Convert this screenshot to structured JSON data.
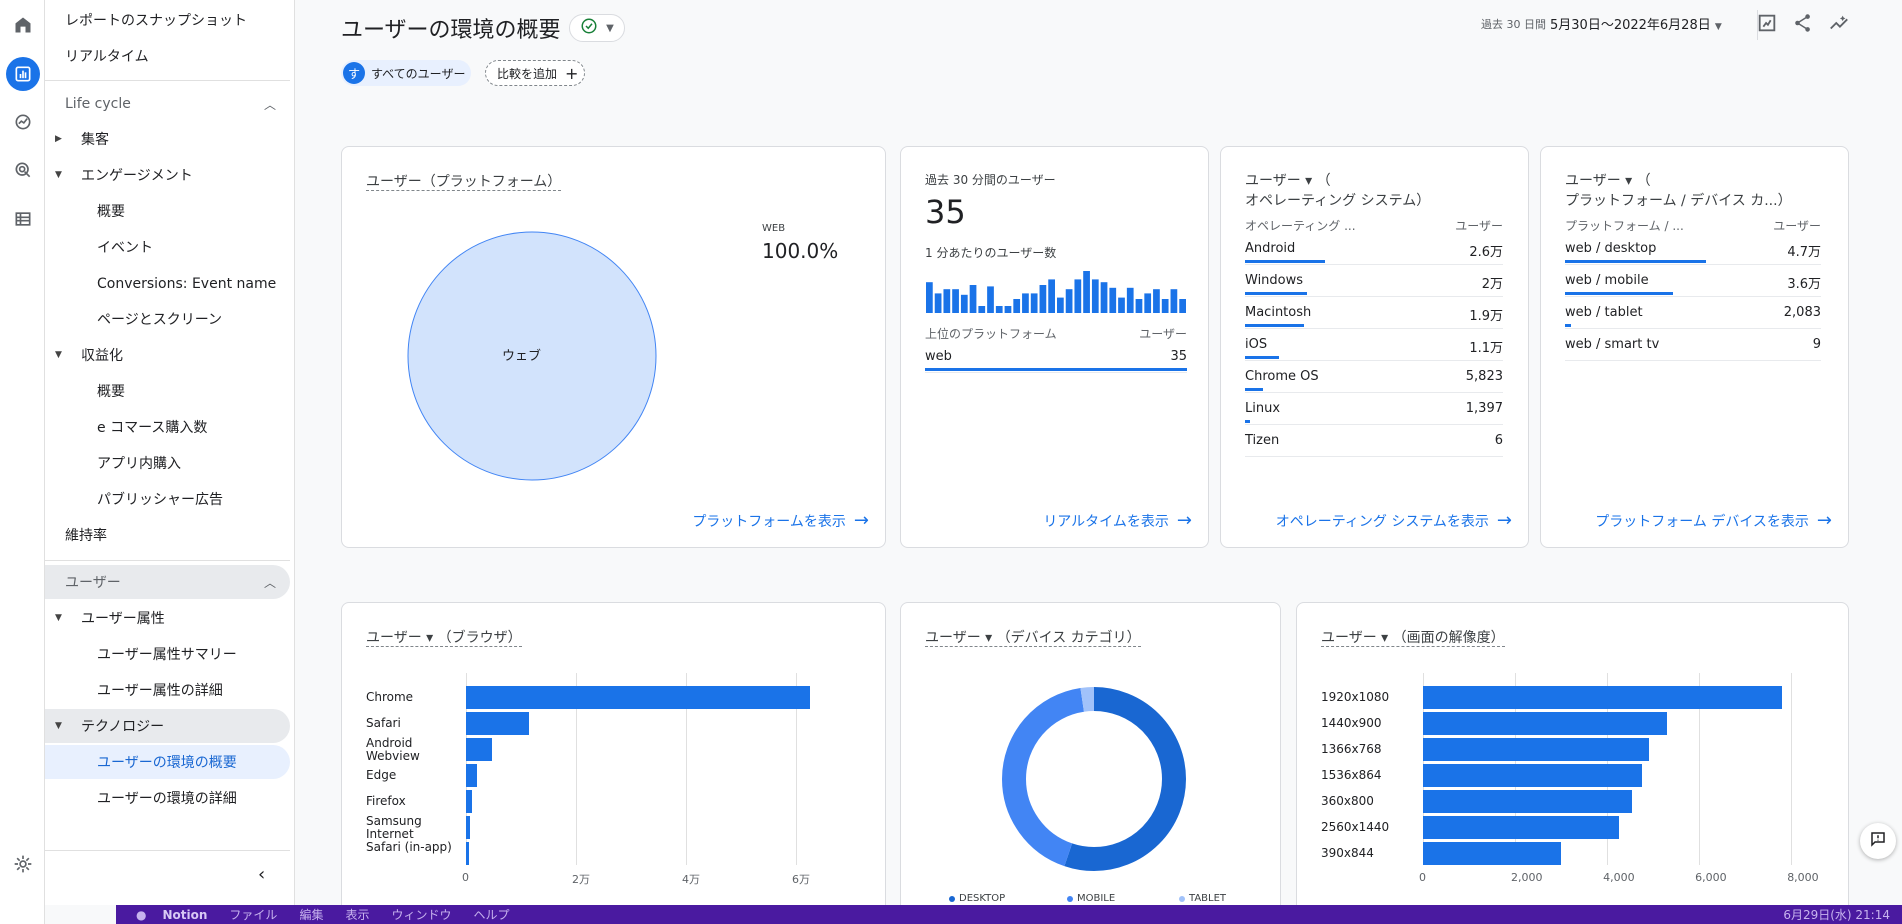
{
  "rail": {
    "items": [
      "home-icon",
      "reports-icon",
      "explore-icon",
      "advertising-icon",
      "configure-icon",
      "settings-icon"
    ]
  },
  "nav": {
    "snapshot": "レポートのスナップショット",
    "realtime": "リアルタイム",
    "lifecycle": "Life cycle",
    "acquisition": "集客",
    "engagement": "エンゲージメント",
    "overview": "概要",
    "events": "イベント",
    "conversions": "Conversions: Event name",
    "pages": "ページとスクリーン",
    "monetization": "収益化",
    "mon_overview": "概要",
    "ecommerce": "e コマース購入数",
    "inapp": "アプリ内購入",
    "publisher": "パブリッシャー広告",
    "retention": "維持率",
    "user_section": "ユーザー",
    "demographics": "ユーザー属性",
    "demo_summary": "ユーザー属性サマリー",
    "demo_detail": "ユーザー属性の詳細",
    "tech": "テクノロジー",
    "tech_overview": "ユーザーの環境の概要",
    "tech_detail": "ユーザーの環境の詳細"
  },
  "header": {
    "title": "ユーザーの環境の概要",
    "date_prefix": "過去 30 日間",
    "date_range": "5月30日～2022年6月28日",
    "chip_user_initial": "す",
    "chip_all_users": "すべてのユーザー",
    "chip_compare": "比較を追加"
  },
  "platform_card": {
    "title": "ユーザー（プラットフォーム）",
    "legend_label": "WEB",
    "legend_value": "100.0%",
    "pie_label": "ウェブ",
    "link": "プラットフォームを表示"
  },
  "realtime_card": {
    "title": "過去 30 分間のユーザー",
    "value": "35",
    "subtitle": "1 分あたりのユーザー数",
    "col1": "上位のプラットフォーム",
    "col2": "ユーザー",
    "rows": [
      {
        "k": "web",
        "v": "35",
        "pct": 1.0
      }
    ],
    "link": "リアルタイムを表示",
    "sparkline": [
      22,
      14,
      17,
      17,
      13,
      20,
      5,
      19,
      5,
      5,
      10,
      14,
      14,
      20,
      24,
      11,
      17,
      24,
      30,
      24,
      22,
      18,
      11,
      18,
      10,
      14,
      17,
      10,
      17,
      10
    ]
  },
  "os_card": {
    "title_line1": "ユーザー ▾ （",
    "title_line2": "オペレーティング システム）",
    "col1": "オペレーティング ...",
    "col2": "ユーザー",
    "rows": [
      {
        "k": "Android",
        "v": "2.6万",
        "pct": 0.31
      },
      {
        "k": "Windows",
        "v": "2万",
        "pct": 0.24
      },
      {
        "k": "Macintosh",
        "v": "1.9万",
        "pct": 0.23
      },
      {
        "k": "iOS",
        "v": "1.1万",
        "pct": 0.13
      },
      {
        "k": "Chrome OS",
        "v": "5,823",
        "pct": 0.07
      },
      {
        "k": "Linux",
        "v": "1,397",
        "pct": 0.02
      },
      {
        "k": "Tizen",
        "v": "6",
        "pct": 0.0
      }
    ],
    "link": "オペレーティング システムを表示"
  },
  "device_card": {
    "title_line1": "ユーザー ▾ （",
    "title_line2": "プラットフォーム / デバイス カ...）",
    "col1": "プラットフォーム / ...",
    "col2": "ユーザー",
    "rows": [
      {
        "k": "web / desktop",
        "v": "4.7万",
        "pct": 0.55
      },
      {
        "k": "web / mobile",
        "v": "3.6万",
        "pct": 0.42
      },
      {
        "k": "web / tablet",
        "v": "2,083",
        "pct": 0.024
      },
      {
        "k": "web / smart tv",
        "v": "9",
        "pct": 0.0
      }
    ],
    "link": "プラットフォーム デバイスを表示"
  },
  "browser_card": {
    "title": "ユーザー ▾ （ブラウザ）"
  },
  "devcat_card": {
    "title": "ユーザー ▾ （デバイス カテゴリ）"
  },
  "resolution_card": {
    "title": "ユーザー ▾ （画面の解像度）"
  },
  "chart_data": [
    {
      "type": "bar",
      "orientation": "horizontal",
      "categories": [
        "Chrome",
        "Safari",
        "Android Webview",
        "Edge",
        "Firefox",
        "Samsung Internet",
        "Safari (in-app)"
      ],
      "values": [
        62500,
        11500,
        4800,
        2000,
        1100,
        800,
        600
      ],
      "xlim": [
        0,
        66000
      ],
      "xticks": [
        "0",
        "2万",
        "4万",
        "6万"
      ],
      "xtick_values": [
        0,
        20000,
        40000,
        60000
      ]
    },
    {
      "type": "pie",
      "variant": "donut",
      "categories": [
        "DESKTOP",
        "MOBILE",
        "TABLET"
      ],
      "values": [
        55.2,
        42.4,
        2.4
      ],
      "colors": [
        "#1967d2",
        "#4285f4",
        "#a1c2fa"
      ]
    },
    {
      "type": "bar",
      "orientation": "horizontal",
      "categories": [
        "1920x1080",
        "1440x900",
        "1366x768",
        "1536x864",
        "360x800",
        "2560x1440",
        "390x844"
      ],
      "values": [
        7800,
        5300,
        4900,
        4750,
        4550,
        4250,
        3000
      ],
      "xlim": [
        0,
        8300
      ],
      "xticks": [
        "0",
        "2,000",
        "4,000",
        "6,000",
        "8,000"
      ],
      "xtick_values": [
        0,
        2000,
        4000,
        6000,
        8000
      ]
    }
  ],
  "taskbar": {
    "app": "Notion",
    "menus": [
      "ファイル",
      "編集",
      "表示",
      "ウィンドウ",
      "ヘルプ"
    ],
    "clock": "6月29日(水) 21:14"
  }
}
